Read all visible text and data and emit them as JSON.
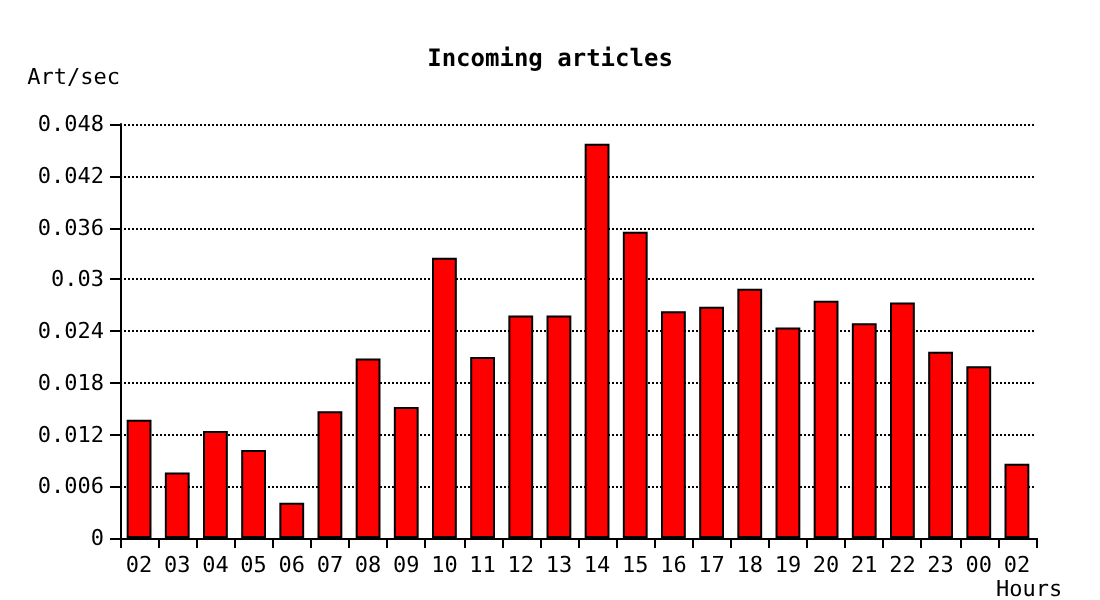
{
  "chart_data": {
    "type": "bar",
    "title": "Incoming articles",
    "xlabel": "Hours",
    "ylabel": "Art/sec",
    "categories": [
      "02",
      "03",
      "04",
      "05",
      "06",
      "07",
      "08",
      "09",
      "10",
      "11",
      "12",
      "13",
      "14",
      "15",
      "16",
      "17",
      "18",
      "19",
      "20",
      "21",
      "22",
      "23",
      "00",
      "02"
    ],
    "values": [
      0.0137,
      0.0076,
      0.0124,
      0.0102,
      0.0041,
      0.0147,
      0.0208,
      0.0152,
      0.0325,
      0.021,
      0.0258,
      0.0258,
      0.0457,
      0.0355,
      0.0263,
      0.0268,
      0.0289,
      0.0244,
      0.0275,
      0.0249,
      0.0273,
      0.0216,
      0.0199,
      0.0086
    ],
    "color": "#ff0000",
    "ylim": [
      0,
      0.048
    ],
    "yticks": [
      0,
      0.006,
      0.012,
      0.018,
      0.024,
      0.03,
      0.036,
      0.042,
      0.048
    ],
    "grid": "y"
  }
}
